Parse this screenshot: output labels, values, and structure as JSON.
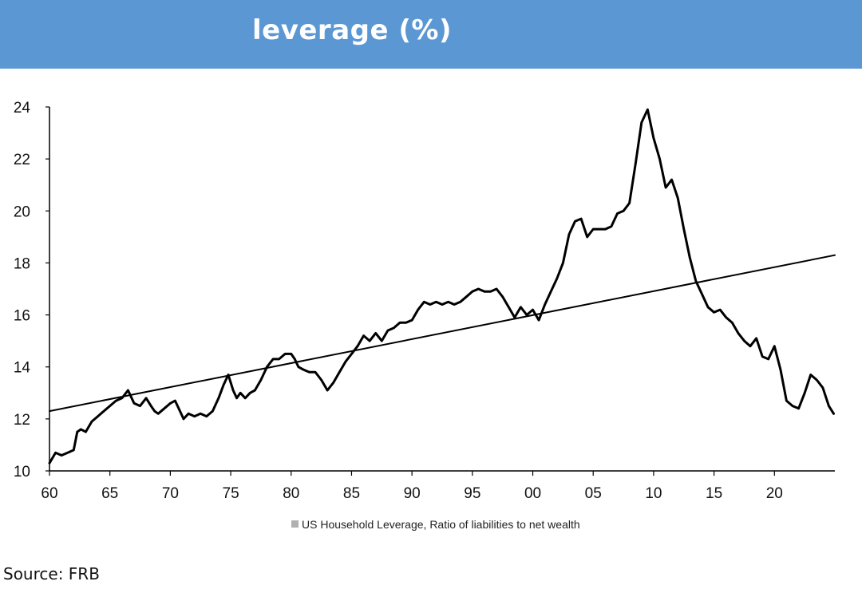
{
  "header": {
    "title": "leverage (%)"
  },
  "source": "Source: FRB",
  "colors": {
    "header_bg": "#5b97d3",
    "series": "#000000",
    "trend": "#000000",
    "legend_marker": "#b0b0b0"
  },
  "chart_data": {
    "type": "line",
    "title": "leverage (%)",
    "xlabel": "",
    "ylabel": "",
    "xlim": [
      1960,
      2025
    ],
    "ylim": [
      10,
      24
    ],
    "x_ticks": [
      1960,
      1965,
      1970,
      1975,
      1980,
      1985,
      1990,
      1995,
      2000,
      2005,
      2010,
      2015,
      2020
    ],
    "x_tick_labels": [
      "60",
      "65",
      "70",
      "75",
      "80",
      "85",
      "90",
      "95",
      "00",
      "05",
      "10",
      "15",
      "20"
    ],
    "y_ticks": [
      10,
      12,
      14,
      16,
      18,
      20,
      22,
      24
    ],
    "y_tick_labels": [
      "10",
      "12",
      "14",
      "16",
      "18",
      "20",
      "22",
      "24"
    ],
    "grid": false,
    "legend": {
      "position": "bottom-center",
      "entries": [
        "US Household Leverage, Ratio of liabilities to net wealth"
      ]
    },
    "series": [
      {
        "name": "US Household Leverage, Ratio of liabilities to net wealth",
        "x": [
          1960.0,
          1960.5,
          1961.0,
          1961.5,
          1962.0,
          1962.3,
          1962.6,
          1963.0,
          1963.5,
          1964.0,
          1964.5,
          1965.0,
          1965.5,
          1966.0,
          1966.5,
          1967.0,
          1967.5,
          1968.0,
          1968.4,
          1968.7,
          1969.0,
          1969.5,
          1970.0,
          1970.4,
          1970.8,
          1971.1,
          1971.5,
          1972.0,
          1972.5,
          1973.0,
          1973.5,
          1974.0,
          1974.4,
          1974.8,
          1975.2,
          1975.5,
          1975.8,
          1976.2,
          1976.6,
          1977.0,
          1977.5,
          1978.0,
          1978.5,
          1979.0,
          1979.5,
          1980.0,
          1980.3,
          1980.6,
          1981.0,
          1981.5,
          1982.0,
          1982.5,
          1983.0,
          1983.5,
          1984.0,
          1984.5,
          1985.0,
          1985.5,
          1986.0,
          1986.5,
          1987.0,
          1987.5,
          1988.0,
          1988.5,
          1989.0,
          1989.5,
          1990.0,
          1990.5,
          1991.0,
          1991.5,
          1992.0,
          1992.5,
          1993.0,
          1993.5,
          1994.0,
          1994.5,
          1995.0,
          1995.5,
          1996.0,
          1996.5,
          1997.0,
          1997.5,
          1998.0,
          1998.5,
          1999.0,
          1999.5,
          2000.0,
          2000.5,
          2001.0,
          2001.5,
          2002.0,
          2002.5,
          2003.0,
          2003.5,
          2004.0,
          2004.5,
          2005.0,
          2005.5,
          2006.0,
          2006.5,
          2007.0,
          2007.5,
          2008.0,
          2008.5,
          2009.0,
          2009.5,
          2010.0,
          2010.5,
          2011.0,
          2011.5,
          2012.0,
          2012.5,
          2013.0,
          2013.5,
          2014.0,
          2014.5,
          2015.0,
          2015.5,
          2016.0,
          2016.5,
          2017.0,
          2017.5,
          2018.0,
          2018.5,
          2019.0,
          2019.5,
          2020.0,
          2020.5,
          2021.0,
          2021.5,
          2022.0,
          2022.5,
          2023.0,
          2023.5,
          2024.0,
          2024.5,
          2024.9
        ],
        "values": [
          10.3,
          10.7,
          10.6,
          10.7,
          10.8,
          11.5,
          11.6,
          11.5,
          11.9,
          12.1,
          12.3,
          12.5,
          12.7,
          12.8,
          13.1,
          12.6,
          12.5,
          12.8,
          12.5,
          12.3,
          12.2,
          12.4,
          12.6,
          12.7,
          12.3,
          12.0,
          12.2,
          12.1,
          12.2,
          12.1,
          12.3,
          12.8,
          13.3,
          13.7,
          13.1,
          12.8,
          13.0,
          12.8,
          13.0,
          13.1,
          13.5,
          14.0,
          14.3,
          14.3,
          14.5,
          14.5,
          14.3,
          14.0,
          13.9,
          13.8,
          13.8,
          13.5,
          13.1,
          13.4,
          13.8,
          14.2,
          14.5,
          14.8,
          15.2,
          15.0,
          15.3,
          15.0,
          15.4,
          15.5,
          15.7,
          15.7,
          15.8,
          16.2,
          16.5,
          16.4,
          16.5,
          16.4,
          16.5,
          16.4,
          16.5,
          16.7,
          16.9,
          17.0,
          16.9,
          16.9,
          17.0,
          16.7,
          16.3,
          15.9,
          16.3,
          16.0,
          16.2,
          15.8,
          16.4,
          16.9,
          17.4,
          18.0,
          19.1,
          19.6,
          19.7,
          19.0,
          19.3,
          19.3,
          19.3,
          19.4,
          19.9,
          20.0,
          20.3,
          21.8,
          23.4,
          23.9,
          22.8,
          22.0,
          20.9,
          21.2,
          20.5,
          19.3,
          18.2,
          17.3,
          16.8,
          16.3,
          16.1,
          16.2,
          15.9,
          15.7,
          15.3,
          15.0,
          14.8,
          15.1,
          14.4,
          14.3,
          14.8,
          13.9,
          12.7,
          12.5,
          12.4,
          13.0,
          13.7,
          13.5,
          13.2,
          12.5,
          12.2
        ]
      },
      {
        "name": "",
        "x": [
          1960,
          2025
        ],
        "values": [
          12.3,
          18.3
        ]
      }
    ]
  }
}
